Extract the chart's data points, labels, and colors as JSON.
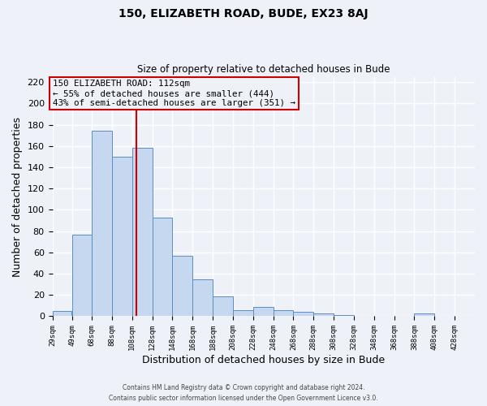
{
  "title": "150, ELIZABETH ROAD, BUDE, EX23 8AJ",
  "subtitle": "Size of property relative to detached houses in Bude",
  "xlabel": "Distribution of detached houses by size in Bude",
  "ylabel": "Number of detached properties",
  "bar_left_edges": [
    29,
    49,
    68,
    88,
    108,
    128,
    148,
    168,
    188,
    208,
    228,
    248,
    268,
    288,
    308,
    328,
    348,
    368,
    388,
    408
  ],
  "bar_widths": [
    19,
    19,
    20,
    20,
    20,
    20,
    20,
    20,
    20,
    20,
    20,
    20,
    20,
    20,
    20,
    20,
    20,
    20,
    20,
    20
  ],
  "bar_heights": [
    5,
    77,
    174,
    150,
    158,
    93,
    57,
    35,
    19,
    6,
    9,
    6,
    4,
    3,
    1,
    0,
    0,
    0,
    3,
    0
  ],
  "bar_color": "#c5d8f0",
  "bar_edge_color": "#5b8ec4",
  "tick_labels": [
    "29sqm",
    "49sqm",
    "68sqm",
    "88sqm",
    "108sqm",
    "128sqm",
    "148sqm",
    "168sqm",
    "188sqm",
    "208sqm",
    "228sqm",
    "248sqm",
    "268sqm",
    "288sqm",
    "308sqm",
    "328sqm",
    "348sqm",
    "368sqm",
    "388sqm",
    "408sqm",
    "428sqm"
  ],
  "tick_positions": [
    29,
    49,
    68,
    88,
    108,
    128,
    148,
    168,
    188,
    208,
    228,
    248,
    268,
    288,
    308,
    328,
    348,
    368,
    388,
    408,
    428
  ],
  "ylim": [
    0,
    225
  ],
  "yticks": [
    0,
    20,
    40,
    60,
    80,
    100,
    120,
    140,
    160,
    180,
    200,
    220
  ],
  "xlim_left": 29,
  "xlim_right": 448,
  "property_size": 112,
  "vline_color": "#cc0000",
  "annotation_line1": "150 ELIZABETH ROAD: 112sqm",
  "annotation_line2": "← 55% of detached houses are smaller (444)",
  "annotation_line3": "43% of semi-detached houses are larger (351) →",
  "box_edge_color": "#cc0000",
  "background_color": "#eef2f8",
  "grid_color": "#ffffff",
  "footer_line1": "Contains HM Land Registry data © Crown copyright and database right 2024.",
  "footer_line2": "Contains public sector information licensed under the Open Government Licence v3.0."
}
